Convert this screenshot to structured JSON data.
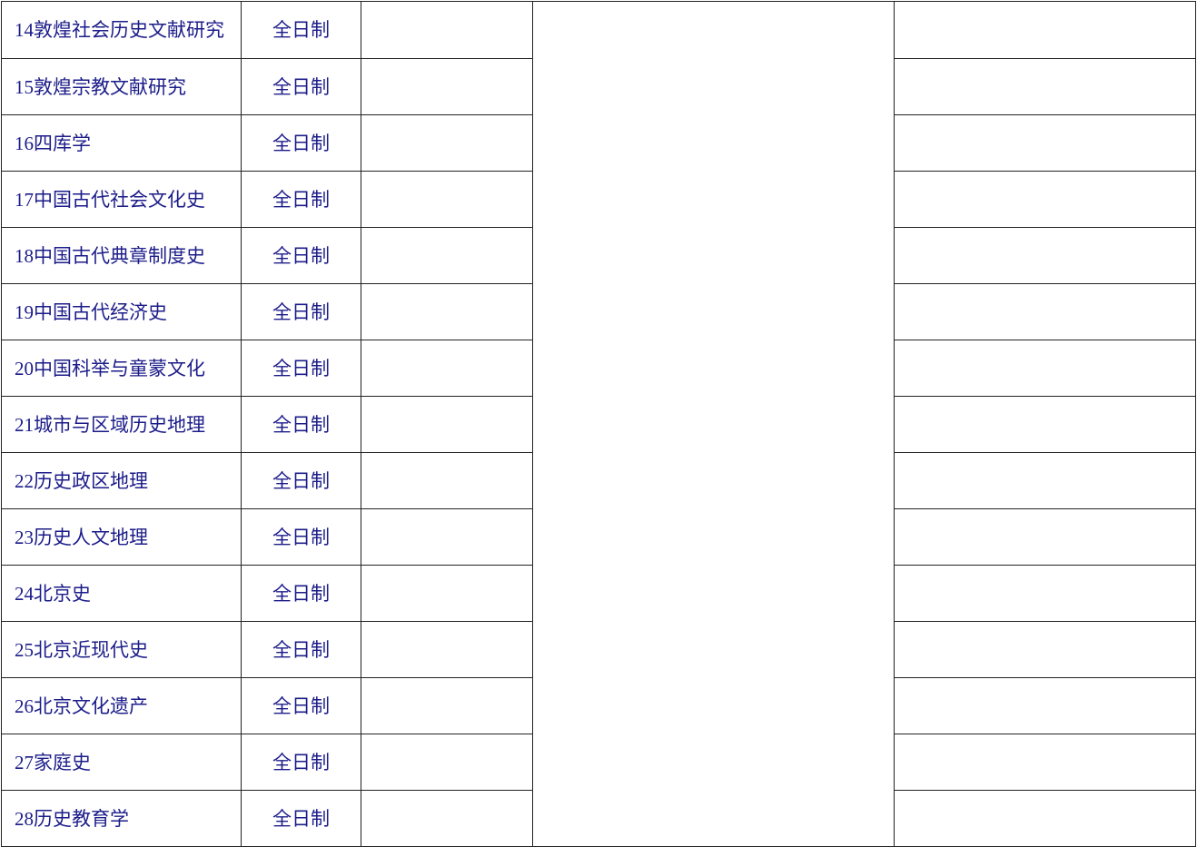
{
  "rows": [
    {
      "name": "14敦煌社会历史文献研究",
      "mode": "全日制"
    },
    {
      "name": "15敦煌宗教文献研究",
      "mode": "全日制"
    },
    {
      "name": "16四库学",
      "mode": "全日制"
    },
    {
      "name": "17中国古代社会文化史",
      "mode": "全日制"
    },
    {
      "name": "18中国古代典章制度史",
      "mode": "全日制"
    },
    {
      "name": "19中国古代经济史",
      "mode": "全日制"
    },
    {
      "name": "20中国科举与童蒙文化",
      "mode": "全日制"
    },
    {
      "name": "21城市与区域历史地理",
      "mode": "全日制"
    },
    {
      "name": "22历史政区地理",
      "mode": "全日制"
    },
    {
      "name": "23历史人文地理",
      "mode": "全日制"
    },
    {
      "name": "24北京史",
      "mode": "全日制"
    },
    {
      "name": "25北京近现代史",
      "mode": "全日制"
    },
    {
      "name": "26北京文化遗产",
      "mode": "全日制"
    },
    {
      "name": "27家庭史",
      "mode": "全日制"
    },
    {
      "name": "28历史教育学",
      "mode": "全日制"
    }
  ]
}
